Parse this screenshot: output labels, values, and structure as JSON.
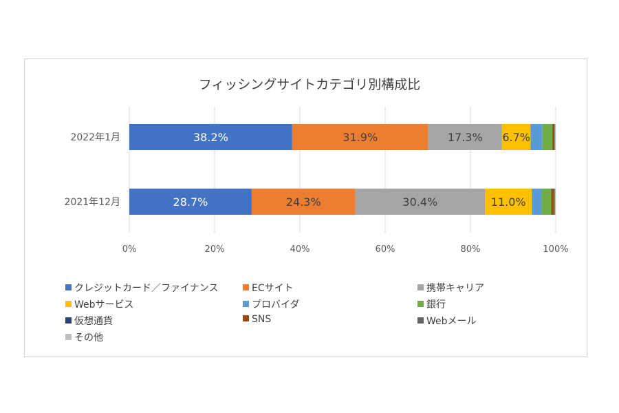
{
  "chart_data": {
    "type": "bar",
    "orientation": "horizontal",
    "stacked": "percent",
    "title": "フィッシングサイトカテゴリ別構成比",
    "categories": [
      "2022年1月",
      "2021年12月"
    ],
    "xlim": [
      0,
      100
    ],
    "x_ticks": [
      "0%",
      "20%",
      "40%",
      "60%",
      "80%",
      "100%"
    ],
    "grid": true,
    "legend_position": "bottom",
    "series": [
      {
        "name": "クレジットカード／ファイナンス",
        "color": "#4472c4",
        "values": [
          38.2,
          28.7
        ],
        "labels": [
          "38.2%",
          "28.7%"
        ]
      },
      {
        "name": "ECサイト",
        "color": "#ed7d31",
        "values": [
          31.9,
          24.3
        ],
        "labels": [
          "31.9%",
          "24.3%"
        ]
      },
      {
        "name": "携帯キャリア",
        "color": "#a5a5a5",
        "values": [
          17.3,
          30.4
        ],
        "labels": [
          "17.3%",
          "30.4%"
        ]
      },
      {
        "name": "Webサービス",
        "color": "#ffc000",
        "values": [
          6.7,
          11.0
        ],
        "labels": [
          "6.7%",
          "11.0%"
        ]
      },
      {
        "name": "プロバイダ",
        "color": "#5b9bd5",
        "values": [
          2.8,
          2.3
        ],
        "labels": [
          "",
          ""
        ]
      },
      {
        "name": "銀行",
        "color": "#70ad47",
        "values": [
          2.3,
          2.2
        ],
        "labels": [
          "",
          ""
        ]
      },
      {
        "name": "仮想通貨",
        "color": "#264478",
        "values": [
          0.1,
          0.1
        ],
        "labels": [
          "",
          ""
        ]
      },
      {
        "name": "SNS",
        "color": "#9e480e",
        "values": [
          0.3,
          0.5
        ],
        "labels": [
          "",
          ""
        ]
      },
      {
        "name": "Webメール",
        "color": "#636363",
        "values": [
          0.2,
          0.3
        ],
        "labels": [
          "",
          ""
        ]
      },
      {
        "name": "その他",
        "color": "#bfbfbf",
        "values": [
          0.2,
          0.2
        ],
        "labels": [
          "",
          ""
        ]
      }
    ]
  }
}
